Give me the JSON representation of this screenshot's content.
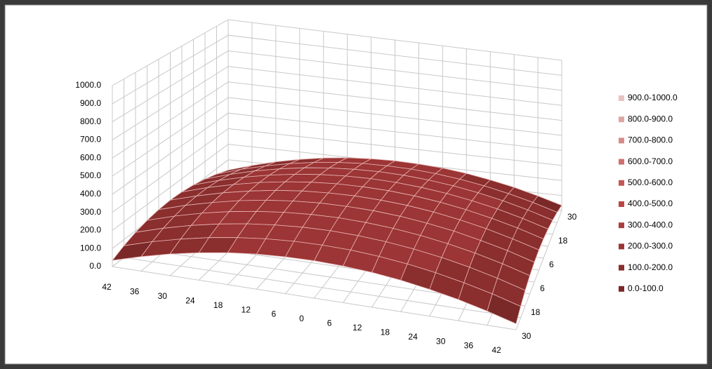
{
  "chart_data": {
    "type": "surface",
    "categories": [
      42,
      36,
      30,
      24,
      18,
      12,
      6,
      0,
      6,
      12,
      18,
      24,
      30,
      36,
      42
    ],
    "y_categories": [
      30,
      null,
      18,
      null,
      6,
      null,
      6,
      null,
      18,
      null,
      30
    ],
    "values": [
      [
        34,
        80,
        120,
        152,
        178,
        196,
        206,
        210,
        206,
        196,
        178,
        152,
        120,
        80,
        34
      ],
      [
        66,
        113,
        152,
        185,
        210,
        228,
        239,
        242,
        239,
        228,
        210,
        185,
        152,
        113,
        66
      ],
      [
        91,
        138,
        178,
        210,
        235,
        253,
        264,
        268,
        264,
        253,
        235,
        210,
        178,
        138,
        91
      ],
      [
        109,
        156,
        196,
        228,
        253,
        271,
        282,
        286,
        282,
        271,
        253,
        228,
        196,
        156,
        109
      ],
      [
        120,
        167,
        206,
        239,
        264,
        282,
        293,
        296,
        293,
        282,
        264,
        239,
        206,
        167,
        120
      ],
      [
        124,
        170,
        210,
        242,
        268,
        286,
        296,
        300,
        296,
        286,
        268,
        242,
        210,
        170,
        124
      ],
      [
        120,
        167,
        206,
        239,
        264,
        282,
        293,
        296,
        293,
        282,
        264,
        239,
        206,
        167,
        120
      ],
      [
        109,
        156,
        196,
        228,
        253,
        271,
        282,
        286,
        282,
        271,
        253,
        228,
        196,
        156,
        109
      ],
      [
        91,
        138,
        178,
        210,
        235,
        253,
        264,
        268,
        264,
        253,
        235,
        210,
        178,
        138,
        91
      ],
      [
        66,
        113,
        152,
        185,
        210,
        228,
        239,
        242,
        239,
        228,
        210,
        185,
        152,
        113,
        66
      ],
      [
        34,
        80,
        120,
        152,
        178,
        196,
        206,
        210,
        206,
        196,
        178,
        152,
        120,
        80,
        34
      ]
    ],
    "zlim": [
      0,
      1000
    ],
    "zticks": [
      {
        "value": 0,
        "label": "0.0"
      },
      {
        "value": 100,
        "label": "100.0"
      },
      {
        "value": 200,
        "label": "200.0"
      },
      {
        "value": 300,
        "label": "300.0"
      },
      {
        "value": 400,
        "label": "400.0"
      },
      {
        "value": 500,
        "label": "500.0"
      },
      {
        "value": 600,
        "label": "600.0"
      },
      {
        "value": 700,
        "label": "700.0"
      },
      {
        "value": 800,
        "label": "800.0"
      },
      {
        "value": 900,
        "label": "900.0"
      },
      {
        "value": 1000,
        "label": "1000.0"
      }
    ],
    "grid": true,
    "legend_position": "right",
    "legend": [
      {
        "name": "0.0-100.0",
        "color": "#7a2828"
      },
      {
        "name": "100.0-200.0",
        "color": "#8a2e2e"
      },
      {
        "name": "200.0-300.0",
        "color": "#9c3535"
      },
      {
        "name": "300.0-400.0",
        "color": "#ad3d3d"
      },
      {
        "name": "400.0-500.0",
        "color": "#bb4646"
      },
      {
        "name": "500.0-600.0",
        "color": "#c55656"
      },
      {
        "name": "600.0-700.0",
        "color": "#cf6f6f"
      },
      {
        "name": "700.0-800.0",
        "color": "#d78a8a"
      },
      {
        "name": "800.0-900.0",
        "color": "#dfa5a5"
      },
      {
        "name": "900.0-1000.0",
        "color": "#e8c2c2"
      }
    ]
  }
}
